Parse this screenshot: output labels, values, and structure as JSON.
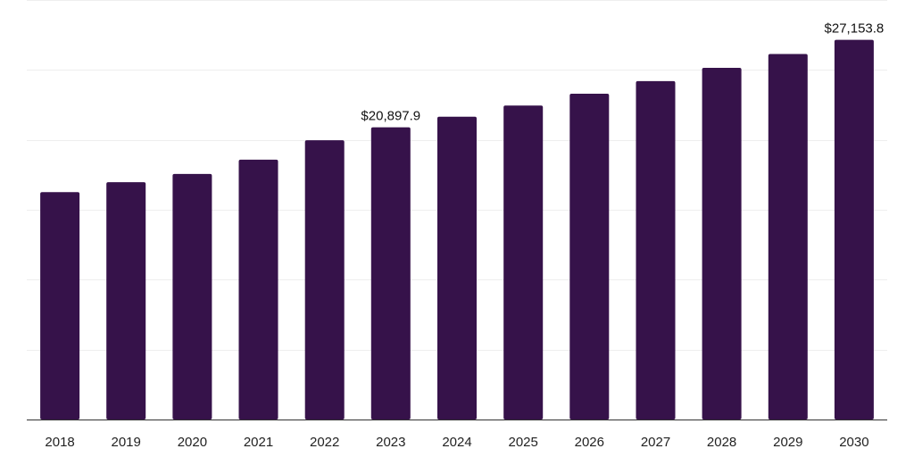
{
  "chart_data": {
    "type": "bar",
    "categories": [
      "2018",
      "2019",
      "2020",
      "2021",
      "2022",
      "2023",
      "2024",
      "2025",
      "2026",
      "2027",
      "2028",
      "2029",
      "2030"
    ],
    "values": [
      16260.0,
      16970.0,
      17560.0,
      18580.0,
      19970.0,
      20897.9,
      21650.0,
      22450.0,
      23300.0,
      24200.0,
      25150.0,
      26140.0,
      27153.8
    ],
    "data_labels": [
      "",
      "",
      "",
      "",
      "",
      "$20,897.9",
      "",
      "",
      "",
      "",
      "",
      "",
      "$27,153.8"
    ],
    "title": "",
    "xlabel": "",
    "ylabel": "",
    "ylim": [
      0,
      30000
    ],
    "grid": true,
    "colors": {
      "bar": "#36124a",
      "grid": "#eeeeee",
      "axis": "#333333"
    }
  }
}
